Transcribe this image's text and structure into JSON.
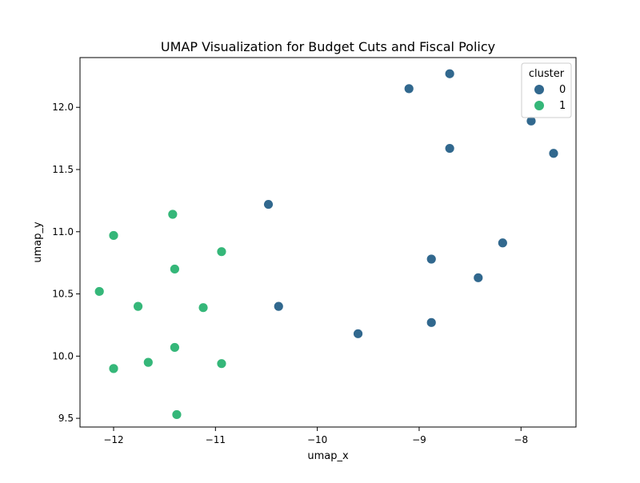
{
  "chart_data": {
    "type": "scatter",
    "title": "UMAP Visualization for Budget Cuts and Fiscal Policy",
    "xlabel": "umap_x",
    "ylabel": "umap_y",
    "xlim": [
      -12.33,
      -7.46
    ],
    "ylim": [
      9.43,
      12.4
    ],
    "x_ticks": [
      -12,
      -11,
      -10,
      -9,
      -8
    ],
    "x_tick_labels": [
      "−12",
      "−11",
      "−10",
      "−9",
      "−8"
    ],
    "y_ticks": [
      9.5,
      10.0,
      10.5,
      11.0,
      11.5,
      12.0
    ],
    "y_tick_labels": [
      "9.5",
      "10.0",
      "10.5",
      "11.0",
      "11.5",
      "12.0"
    ],
    "grid": false,
    "legend": {
      "title": "cluster",
      "placement": "top-right"
    },
    "series": [
      {
        "name": "0",
        "color": "#31688e",
        "points": [
          {
            "x": -8.7,
            "y": 12.27
          },
          {
            "x": -9.1,
            "y": 12.15
          },
          {
            "x": -7.9,
            "y": 11.89
          },
          {
            "x": -8.7,
            "y": 11.67
          },
          {
            "x": -7.68,
            "y": 11.63
          },
          {
            "x": -10.48,
            "y": 11.22
          },
          {
            "x": -8.18,
            "y": 10.91
          },
          {
            "x": -8.88,
            "y": 10.78
          },
          {
            "x": -8.42,
            "y": 10.63
          },
          {
            "x": -10.38,
            "y": 10.4
          },
          {
            "x": -8.88,
            "y": 10.27
          },
          {
            "x": -9.6,
            "y": 10.18
          }
        ]
      },
      {
        "name": "1",
        "color": "#35b779",
        "points": [
          {
            "x": -11.42,
            "y": 11.14
          },
          {
            "x": -12.0,
            "y": 10.97
          },
          {
            "x": -10.94,
            "y": 10.84
          },
          {
            "x": -11.4,
            "y": 10.7
          },
          {
            "x": -12.14,
            "y": 10.52
          },
          {
            "x": -11.76,
            "y": 10.4
          },
          {
            "x": -11.12,
            "y": 10.39
          },
          {
            "x": -11.4,
            "y": 10.07
          },
          {
            "x": -11.66,
            "y": 9.95
          },
          {
            "x": -10.94,
            "y": 9.94
          },
          {
            "x": -12.0,
            "y": 9.9
          },
          {
            "x": -11.38,
            "y": 9.53
          }
        ]
      }
    ]
  }
}
